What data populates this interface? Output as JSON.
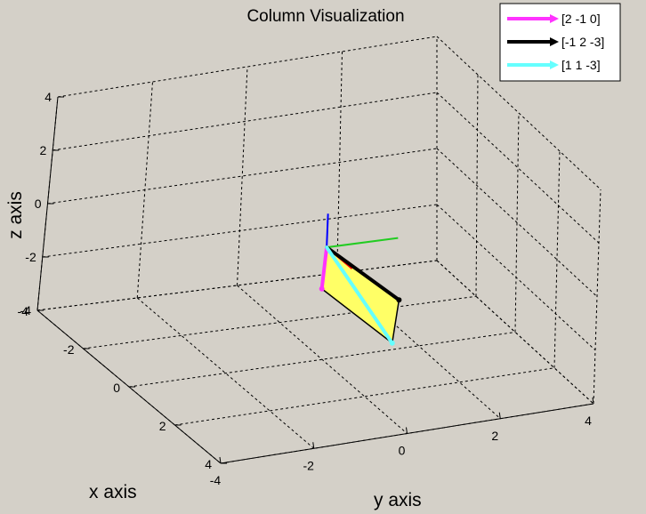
{
  "chart_data": {
    "type": "3d-line",
    "title": "Column Visualization",
    "xlabel": "x axis",
    "ylabel": "y axis",
    "zlabel": "z axis",
    "xlim": [
      -4,
      4
    ],
    "ylim": [
      -4,
      4
    ],
    "zlim": [
      -4,
      4
    ],
    "x_ticks": [
      "-4",
      "-2",
      "0",
      "2",
      "4"
    ],
    "y_ticks": [
      "-4",
      "-2",
      "0",
      "2",
      "4"
    ],
    "z_ticks": [
      "-4",
      "-2",
      "0",
      "2",
      "4"
    ],
    "grid": true,
    "legend_position": "top-right",
    "series": [
      {
        "name": "[2 -1 0]",
        "vector": [
          2,
          -1,
          0
        ],
        "color": "#ff33ff"
      },
      {
        "name": "[-1 2 -3]",
        "vector": [
          -1,
          2,
          -3
        ],
        "color": "#000000"
      },
      {
        "name": "[1 1 -3]",
        "vector": [
          1,
          1,
          -3
        ],
        "color": "#66ffff"
      }
    ],
    "basis_axes": [
      {
        "axis": "x",
        "color": "#ff0000"
      },
      {
        "axis": "y",
        "color": "#22cc22"
      },
      {
        "axis": "z",
        "color": "#0000ff"
      }
    ],
    "plane": {
      "spanned_by": [
        "[2 -1 0]",
        "[-1 2 -3]"
      ],
      "color": "#ffff66"
    }
  }
}
